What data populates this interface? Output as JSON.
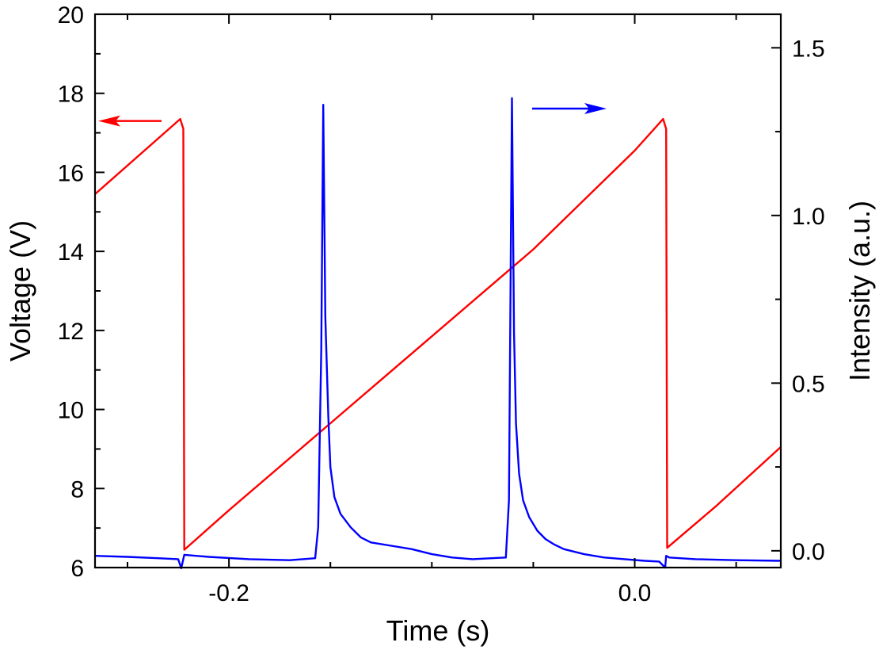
{
  "chart_data": {
    "type": "line",
    "xlabel": "Time (s)",
    "ylabel_left": "Voltage (V)",
    "ylabel_right": "Intensity (a.u.)",
    "xlim": [
      -0.266,
      0.072
    ],
    "ylim_left": [
      6,
      20
    ],
    "ylim_right": [
      -0.05,
      1.6
    ],
    "x_ticks": [
      {
        "value": -0.2,
        "label": "-0.2"
      },
      {
        "value": 0.0,
        "label": "0.0"
      }
    ],
    "y_ticks_left": [
      {
        "value": 6,
        "label": "6"
      },
      {
        "value": 8,
        "label": "8"
      },
      {
        "value": 10,
        "label": "10"
      },
      {
        "value": 12,
        "label": "12"
      },
      {
        "value": 14,
        "label": "14"
      },
      {
        "value": 16,
        "label": "16"
      },
      {
        "value": 18,
        "label": "18"
      },
      {
        "value": 20,
        "label": "20"
      }
    ],
    "y_ticks_right": [
      {
        "value": 0.0,
        "label": "0.0"
      },
      {
        "value": 0.5,
        "label": "0.5"
      },
      {
        "value": 1.0,
        "label": "1.0"
      },
      {
        "value": 1.5,
        "label": "1.5"
      }
    ],
    "legend": "none",
    "grid": false,
    "series": [
      {
        "axis": "left",
        "color": "#ff0000",
        "x": [
          -0.266,
          -0.224,
          -0.2225,
          -0.222,
          -0.2,
          -0.15,
          -0.1,
          -0.05,
          0.0,
          0.014,
          0.0155,
          0.016,
          0.04,
          0.072
        ],
        "y": [
          15.45,
          17.35,
          17.1,
          6.45,
          7.45,
          9.65,
          11.85,
          14.05,
          16.55,
          17.35,
          17.1,
          6.5,
          7.55,
          9.05
        ]
      },
      {
        "axis": "right",
        "color": "#0000ff",
        "x": [
          -0.266,
          -0.25,
          -0.235,
          -0.225,
          -0.2235,
          -0.222,
          -0.21,
          -0.19,
          -0.17,
          -0.1575,
          -0.156,
          -0.1545,
          -0.1535,
          -0.1525,
          -0.151,
          -0.15,
          -0.148,
          -0.145,
          -0.14,
          -0.135,
          -0.13,
          -0.12,
          -0.11,
          -0.1,
          -0.09,
          -0.08,
          -0.0635,
          -0.062,
          -0.0605,
          -0.0595,
          -0.0585,
          -0.057,
          -0.055,
          -0.052,
          -0.048,
          -0.044,
          -0.04,
          -0.035,
          -0.025,
          -0.015,
          -0.005,
          0.005,
          0.012,
          0.015,
          0.0155,
          0.017,
          0.03,
          0.05,
          0.072
        ],
        "y": [
          -0.015,
          -0.018,
          -0.022,
          -0.025,
          -0.052,
          -0.012,
          -0.018,
          -0.025,
          -0.028,
          -0.022,
          0.07,
          0.6,
          1.33,
          0.7,
          0.4,
          0.25,
          0.16,
          0.11,
          0.07,
          0.04,
          0.025,
          0.015,
          0.005,
          -0.01,
          -0.02,
          -0.025,
          -0.02,
          0.15,
          1.35,
          0.65,
          0.38,
          0.23,
          0.15,
          0.1,
          0.06,
          0.035,
          0.02,
          0.005,
          -0.01,
          -0.02,
          -0.025,
          -0.03,
          -0.032,
          -0.05,
          -0.015,
          -0.02,
          -0.025,
          -0.028,
          -0.03
        ]
      }
    ],
    "annotations": [
      {
        "type": "arrow",
        "direction": "left",
        "color": "#ff0000",
        "points_to": "left axis"
      },
      {
        "type": "arrow",
        "direction": "right",
        "color": "#0000ff",
        "points_to": "right axis"
      }
    ]
  }
}
